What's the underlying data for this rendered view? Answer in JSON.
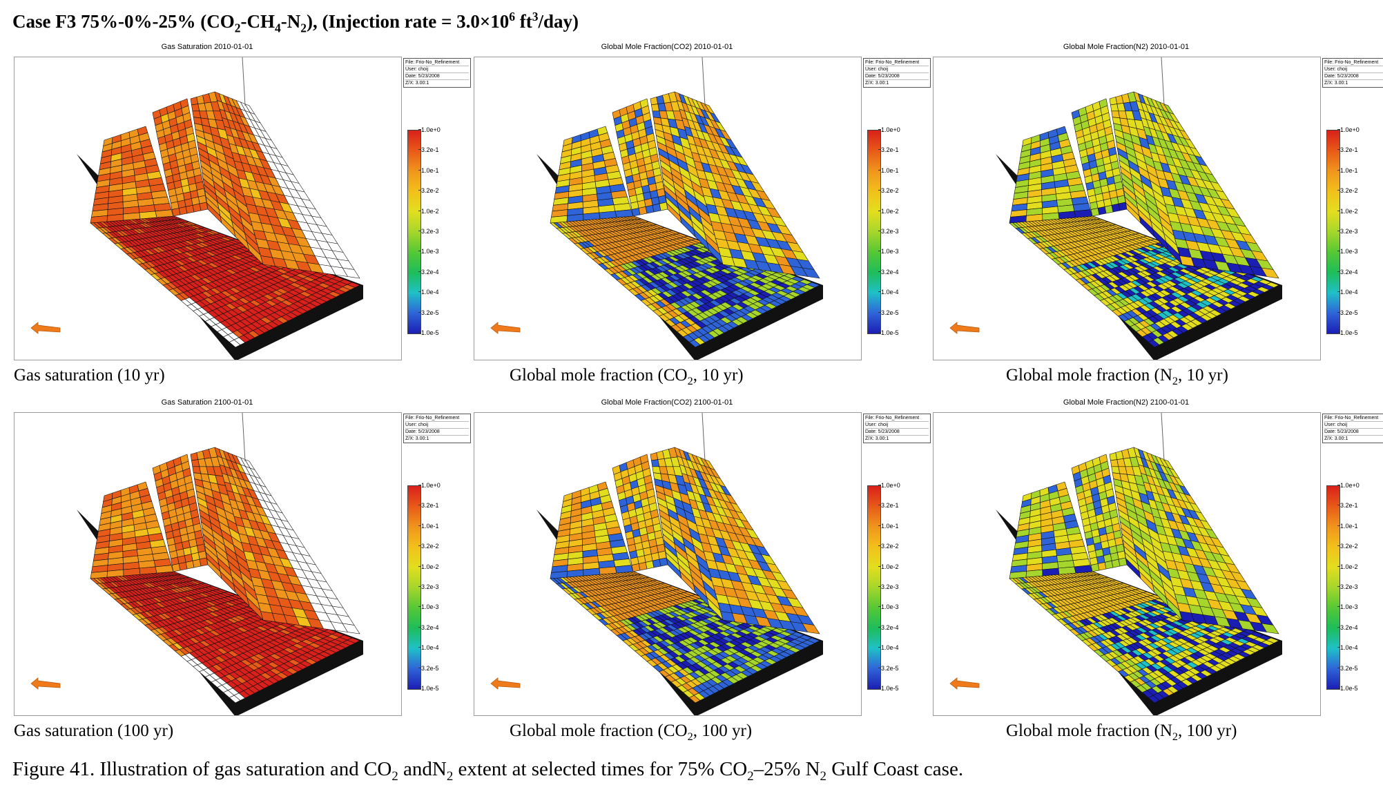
{
  "case_title": {
    "prefix": "Case F3 75%-0%-25% (CO",
    "sub1": "2",
    "mid1": "-CH",
    "sub2": "4",
    "mid2": "-N",
    "sub3": "2",
    "mid3": "), (Injection rate = 3.0×10",
    "sup1": "6",
    "mid4": " ft",
    "sup2": "3",
    "suffix": "/day)"
  },
  "info_box": [
    "File: Frio-No_Refinement",
    "User: choij",
    "Date: 5/23/2008",
    "Z/X: 3.00:1"
  ],
  "legend_ticks": [
    "1.0e+0",
    "3.2e-1",
    "1.0e-1",
    "3.2e-2",
    "1.0e-2",
    "3.2e-3",
    "1.0e-3",
    "3.2e-4",
    "1.0e-4",
    "3.2e-5",
    "1.0e-5"
  ],
  "legend_colors": [
    "#d9201b",
    "#e85a18",
    "#f0951c",
    "#f2c01b",
    "#e2de1e",
    "#a6d62b",
    "#56c835",
    "#1dbd5a",
    "#1fc0c8",
    "#2f64d8",
    "#1b1eb4"
  ],
  "panels": [
    {
      "plot_title": "Gas Saturation 2010-01-01",
      "caption": {
        "pre": "Gas saturation (10 yr)",
        "sub": "",
        "post": ""
      },
      "scheme": "gas"
    },
    {
      "plot_title": "Global Mole Fraction(CO2) 2010-01-01",
      "caption": {
        "pre": "Global mole fraction (CO",
        "sub": "2",
        "post": ", 10 yr)"
      },
      "scheme": "co2"
    },
    {
      "plot_title": "Global Mole Fraction(N2) 2010-01-01",
      "caption": {
        "pre": "Global mole fraction (N",
        "sub": "2",
        "post": ", 10 yr)"
      },
      "scheme": "n2"
    },
    {
      "plot_title": "Gas Saturation 2100-01-01",
      "caption": {
        "pre": "Gas saturation (100 yr)",
        "sub": "",
        "post": ""
      },
      "scheme": "gas"
    },
    {
      "plot_title": "Global Mole Fraction(CO2) 2100-01-01",
      "caption": {
        "pre": "Global mole fraction (CO",
        "sub": "2",
        "post": ", 100 yr)"
      },
      "scheme": "co2"
    },
    {
      "plot_title": "Global Mole Fraction(N2) 2100-01-01",
      "caption": {
        "pre": "Global mole fraction (N",
        "sub": "2",
        "post": ", 100 yr)"
      },
      "scheme": "n2"
    }
  ],
  "figure_caption": {
    "p1": "Figure 41. Illustration of gas saturation and CO",
    "s1": "2",
    "p2": " andN",
    "s2": "2",
    "p3": " extent at selected times for 75% CO",
    "s3": "2",
    "p4": "–25% N",
    "s4": "2",
    "p5": " Gulf Coast case."
  }
}
